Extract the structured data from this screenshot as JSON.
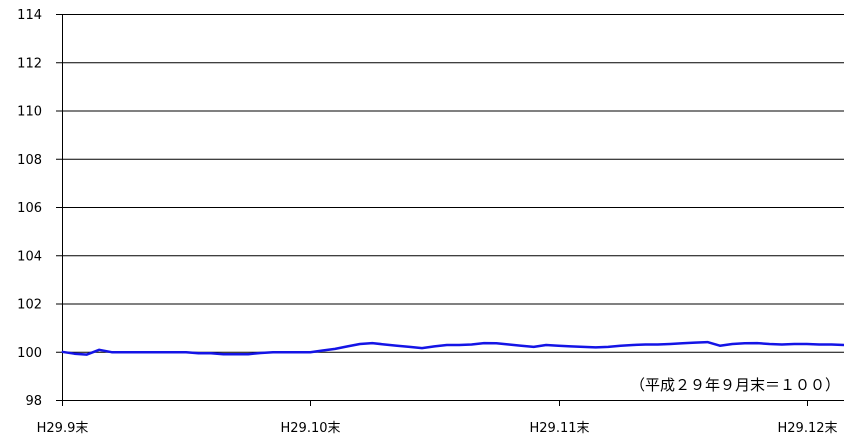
{
  "chart_data": {
    "type": "line",
    "title": "",
    "xlabel": "",
    "ylabel": "",
    "ylim": [
      98,
      114
    ],
    "yticks": [
      98,
      100,
      102,
      104,
      106,
      108,
      110,
      112,
      114
    ],
    "ytick_labels": [
      "98",
      "100",
      "102",
      "104",
      "106",
      "108",
      "110",
      "112",
      "114"
    ],
    "xticks": [
      {
        "label": "H29.9末",
        "x": 0
      },
      {
        "label": "H29.10末",
        "x": 20
      },
      {
        "label": "H29.11末",
        "x": 40
      },
      {
        "label": "H29.12末",
        "x": 60
      }
    ],
    "xlim": [
      0,
      63
    ],
    "grid": true,
    "annotation": "（平成２９年９月末＝１００）",
    "series": [
      {
        "color": "#1414e6",
        "x": [
          0,
          1,
          2,
          3,
          4,
          5,
          6,
          7,
          8,
          9,
          10,
          11,
          12,
          13,
          14,
          15,
          16,
          17,
          18,
          19,
          20,
          21,
          22,
          23,
          24,
          25,
          26,
          27,
          28,
          29,
          30,
          31,
          32,
          33,
          34,
          35,
          36,
          37,
          38,
          39,
          40,
          41,
          42,
          43,
          44,
          45,
          46,
          47,
          48,
          49,
          50,
          51,
          52,
          53,
          54,
          55,
          56,
          57,
          58,
          59,
          60,
          61,
          62,
          63
        ],
        "values": [
          100.0,
          99.92,
          99.88,
          100.08,
          99.98,
          99.98,
          99.98,
          99.98,
          99.98,
          99.98,
          99.98,
          99.94,
          99.94,
          99.9,
          99.9,
          99.9,
          99.95,
          99.98,
          99.98,
          99.98,
          99.98,
          100.05,
          100.12,
          100.22,
          100.32,
          100.36,
          100.3,
          100.25,
          100.2,
          100.15,
          100.22,
          100.28,
          100.28,
          100.3,
          100.36,
          100.35,
          100.3,
          100.25,
          100.2,
          100.28,
          100.25,
          100.22,
          100.2,
          100.18,
          100.2,
          100.25,
          100.28,
          100.3,
          100.3,
          100.32,
          100.35,
          100.38,
          100.4,
          100.25,
          100.32,
          100.35,
          100.36,
          100.32,
          100.3,
          100.32,
          100.32,
          100.3,
          100.3,
          100.28
        ]
      }
    ]
  }
}
